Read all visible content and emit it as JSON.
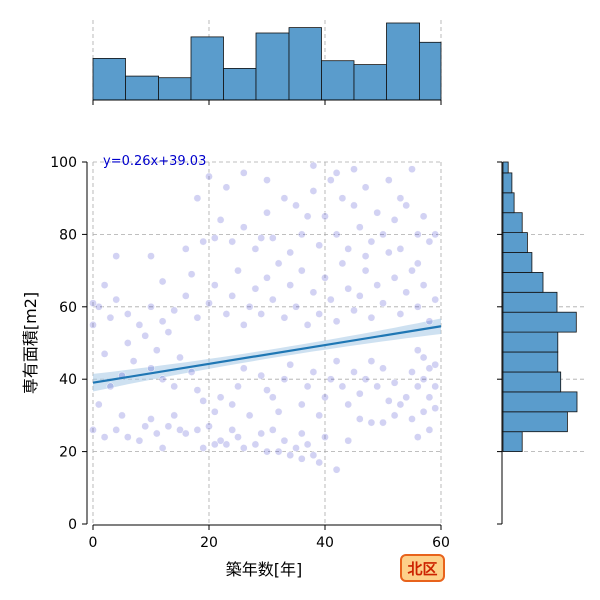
{
  "chart_data": {
    "type": "scatter",
    "marginal": "histogram",
    "xlabel": "築年数[年]",
    "ylabel": "専有面積[m2]",
    "xlim": [
      0,
      60
    ],
    "ylim": [
      0,
      100
    ],
    "x_ticks": [
      "0",
      "20",
      "40",
      "60"
    ],
    "y_ticks": [
      "0",
      "20",
      "40",
      "60",
      "80",
      "100"
    ],
    "grid": true,
    "regression": {
      "equation": "y=0.26x+39.03",
      "slope": 0.26,
      "intercept": 39.03
    },
    "badge": "北区",
    "colors": {
      "point": "#3434c8",
      "regression_line": "#1f77b4",
      "confidence_band": "#a6c8e6",
      "histogram_bar": "#5a9ccc",
      "histogram_edge": "#111111",
      "equation_text": "#0000cc",
      "badge_fill": "#fdd08a",
      "badge_border": "#e8631c",
      "badge_text": "#cc2200",
      "grid": "#aaaaaa"
    },
    "top_histogram": {
      "bin_edges": [
        0,
        5.6,
        11.3,
        16.9,
        22.5,
        28.1,
        33.8,
        39.4,
        45,
        50.6,
        56.3,
        60
      ],
      "relative_heights": [
        0.54,
        0.31,
        0.29,
        0.82,
        0.41,
        0.87,
        0.94,
        0.51,
        0.46,
        1.0,
        0.75
      ]
    },
    "right_histogram": {
      "bin_edges": [
        20,
        25.5,
        31,
        36.5,
        42,
        47.5,
        53,
        58.5,
        64,
        69.5,
        75,
        80.5,
        86,
        91.5,
        97,
        100
      ],
      "relative_counts": [
        0.26,
        0.87,
        1.0,
        0.78,
        0.74,
        0.74,
        0.99,
        0.73,
        0.54,
        0.39,
        0.33,
        0.26,
        0.15,
        0.12,
        0.07
      ]
    },
    "points": [
      [
        12,
        21
      ],
      [
        19,
        21
      ],
      [
        21,
        22
      ],
      [
        23,
        22
      ],
      [
        26,
        21
      ],
      [
        30,
        20
      ],
      [
        32,
        20
      ],
      [
        34,
        19
      ],
      [
        36,
        18
      ],
      [
        38,
        19
      ],
      [
        39,
        17
      ],
      [
        42,
        15
      ],
      [
        22,
        23
      ],
      [
        28,
        22
      ],
      [
        35,
        21
      ],
      [
        37,
        22
      ],
      [
        25,
        24
      ],
      [
        33,
        23
      ],
      [
        29,
        25
      ],
      [
        18,
        26
      ],
      [
        20,
        27
      ],
      [
        24,
        26
      ],
      [
        31,
        26
      ],
      [
        36,
        25
      ],
      [
        40,
        24
      ],
      [
        44,
        23
      ],
      [
        46,
        29
      ],
      [
        48,
        28
      ],
      [
        50,
        28
      ],
      [
        52,
        30
      ],
      [
        55,
        29
      ],
      [
        56,
        24
      ],
      [
        58,
        26
      ],
      [
        57,
        31
      ],
      [
        59,
        32
      ],
      [
        53,
        33
      ],
      [
        54,
        35
      ],
      [
        58,
        35
      ],
      [
        56,
        38
      ],
      [
        57,
        40
      ],
      [
        59,
        38
      ],
      [
        55,
        42
      ],
      [
        58,
        43
      ],
      [
        57,
        46
      ],
      [
        59,
        44
      ],
      [
        56,
        48
      ],
      [
        0,
        26
      ],
      [
        2,
        24
      ],
      [
        4,
        26
      ],
      [
        5,
        30
      ],
      [
        6,
        24
      ],
      [
        8,
        23
      ],
      [
        9,
        27
      ],
      [
        10,
        29
      ],
      [
        11,
        25
      ],
      [
        13,
        27
      ],
      [
        14,
        30
      ],
      [
        15,
        26
      ],
      [
        16,
        25
      ],
      [
        1,
        33
      ],
      [
        3,
        38
      ],
      [
        5,
        41
      ],
      [
        7,
        45
      ],
      [
        10,
        43
      ],
      [
        12,
        40
      ],
      [
        14,
        38
      ],
      [
        2,
        47
      ],
      [
        6,
        50
      ],
      [
        9,
        52
      ],
      [
        11,
        48
      ],
      [
        13,
        53
      ],
      [
        15,
        46
      ],
      [
        17,
        42
      ],
      [
        18,
        37
      ],
      [
        19,
        34
      ],
      [
        21,
        31
      ],
      [
        22,
        35
      ],
      [
        24,
        33
      ],
      [
        25,
        38
      ],
      [
        27,
        30
      ],
      [
        26,
        43
      ],
      [
        29,
        41
      ],
      [
        30,
        37
      ],
      [
        31,
        35
      ],
      [
        32,
        31
      ],
      [
        33,
        40
      ],
      [
        34,
        44
      ],
      [
        36,
        33
      ],
      [
        37,
        38
      ],
      [
        38,
        42
      ],
      [
        39,
        30
      ],
      [
        40,
        35
      ],
      [
        41,
        40
      ],
      [
        42,
        45
      ],
      [
        43,
        38
      ],
      [
        44,
        33
      ],
      [
        45,
        42
      ],
      [
        46,
        36
      ],
      [
        47,
        40
      ],
      [
        48,
        45
      ],
      [
        49,
        38
      ],
      [
        50,
        43
      ],
      [
        51,
        34
      ],
      [
        52,
        39
      ],
      [
        0,
        55
      ],
      [
        1,
        60
      ],
      [
        3,
        57
      ],
      [
        4,
        62
      ],
      [
        6,
        58
      ],
      [
        8,
        55
      ],
      [
        10,
        60
      ],
      [
        12,
        56
      ],
      [
        14,
        59
      ],
      [
        16,
        63
      ],
      [
        18,
        57
      ],
      [
        20,
        61
      ],
      [
        21,
        66
      ],
      [
        23,
        58
      ],
      [
        24,
        63
      ],
      [
        25,
        70
      ],
      [
        26,
        55
      ],
      [
        27,
        60
      ],
      [
        28,
        65
      ],
      [
        29,
        58
      ],
      [
        30,
        68
      ],
      [
        31,
        62
      ],
      [
        32,
        72
      ],
      [
        33,
        57
      ],
      [
        34,
        66
      ],
      [
        35,
        60
      ],
      [
        36,
        70
      ],
      [
        37,
        55
      ],
      [
        38,
        64
      ],
      [
        39,
        58
      ],
      [
        40,
        68
      ],
      [
        41,
        62
      ],
      [
        42,
        56
      ],
      [
        43,
        72
      ],
      [
        44,
        65
      ],
      [
        45,
        59
      ],
      [
        46,
        63
      ],
      [
        47,
        70
      ],
      [
        48,
        57
      ],
      [
        49,
        66
      ],
      [
        50,
        61
      ],
      [
        51,
        75
      ],
      [
        52,
        68
      ],
      [
        53,
        58
      ],
      [
        54,
        64
      ],
      [
        55,
        70
      ],
      [
        56,
        60
      ],
      [
        57,
        66
      ],
      [
        58,
        56
      ],
      [
        59,
        62
      ],
      [
        4,
        74
      ],
      [
        10,
        74
      ],
      [
        12,
        67
      ],
      [
        16,
        76
      ],
      [
        19,
        78
      ],
      [
        21,
        79
      ],
      [
        22,
        84
      ],
      [
        24,
        78
      ],
      [
        26,
        82
      ],
      [
        28,
        76
      ],
      [
        30,
        86
      ],
      [
        31,
        79
      ],
      [
        33,
        90
      ],
      [
        34,
        75
      ],
      [
        35,
        88
      ],
      [
        36,
        80
      ],
      [
        38,
        92
      ],
      [
        39,
        77
      ],
      [
        40,
        85
      ],
      [
        41,
        95
      ],
      [
        42,
        80
      ],
      [
        43,
        90
      ],
      [
        44,
        76
      ],
      [
        45,
        88
      ],
      [
        46,
        82
      ],
      [
        47,
        93
      ],
      [
        48,
        78
      ],
      [
        49,
        86
      ],
      [
        50,
        80
      ],
      [
        51,
        95
      ],
      [
        52,
        84
      ],
      [
        53,
        76
      ],
      [
        54,
        88
      ],
      [
        55,
        98
      ],
      [
        56,
        80
      ],
      [
        57,
        85
      ],
      [
        58,
        78
      ],
      [
        59,
        80
      ],
      [
        45,
        98
      ],
      [
        42,
        97
      ],
      [
        38,
        99
      ],
      [
        30,
        95
      ],
      [
        26,
        97
      ],
      [
        23,
        93
      ],
      [
        20,
        96
      ],
      [
        18,
        90
      ],
      [
        0,
        61
      ],
      [
        2,
        66
      ],
      [
        56,
        72
      ],
      [
        53,
        90
      ],
      [
        47,
        74
      ],
      [
        37,
        85
      ],
      [
        29,
        79
      ],
      [
        17,
        69
      ]
    ]
  }
}
